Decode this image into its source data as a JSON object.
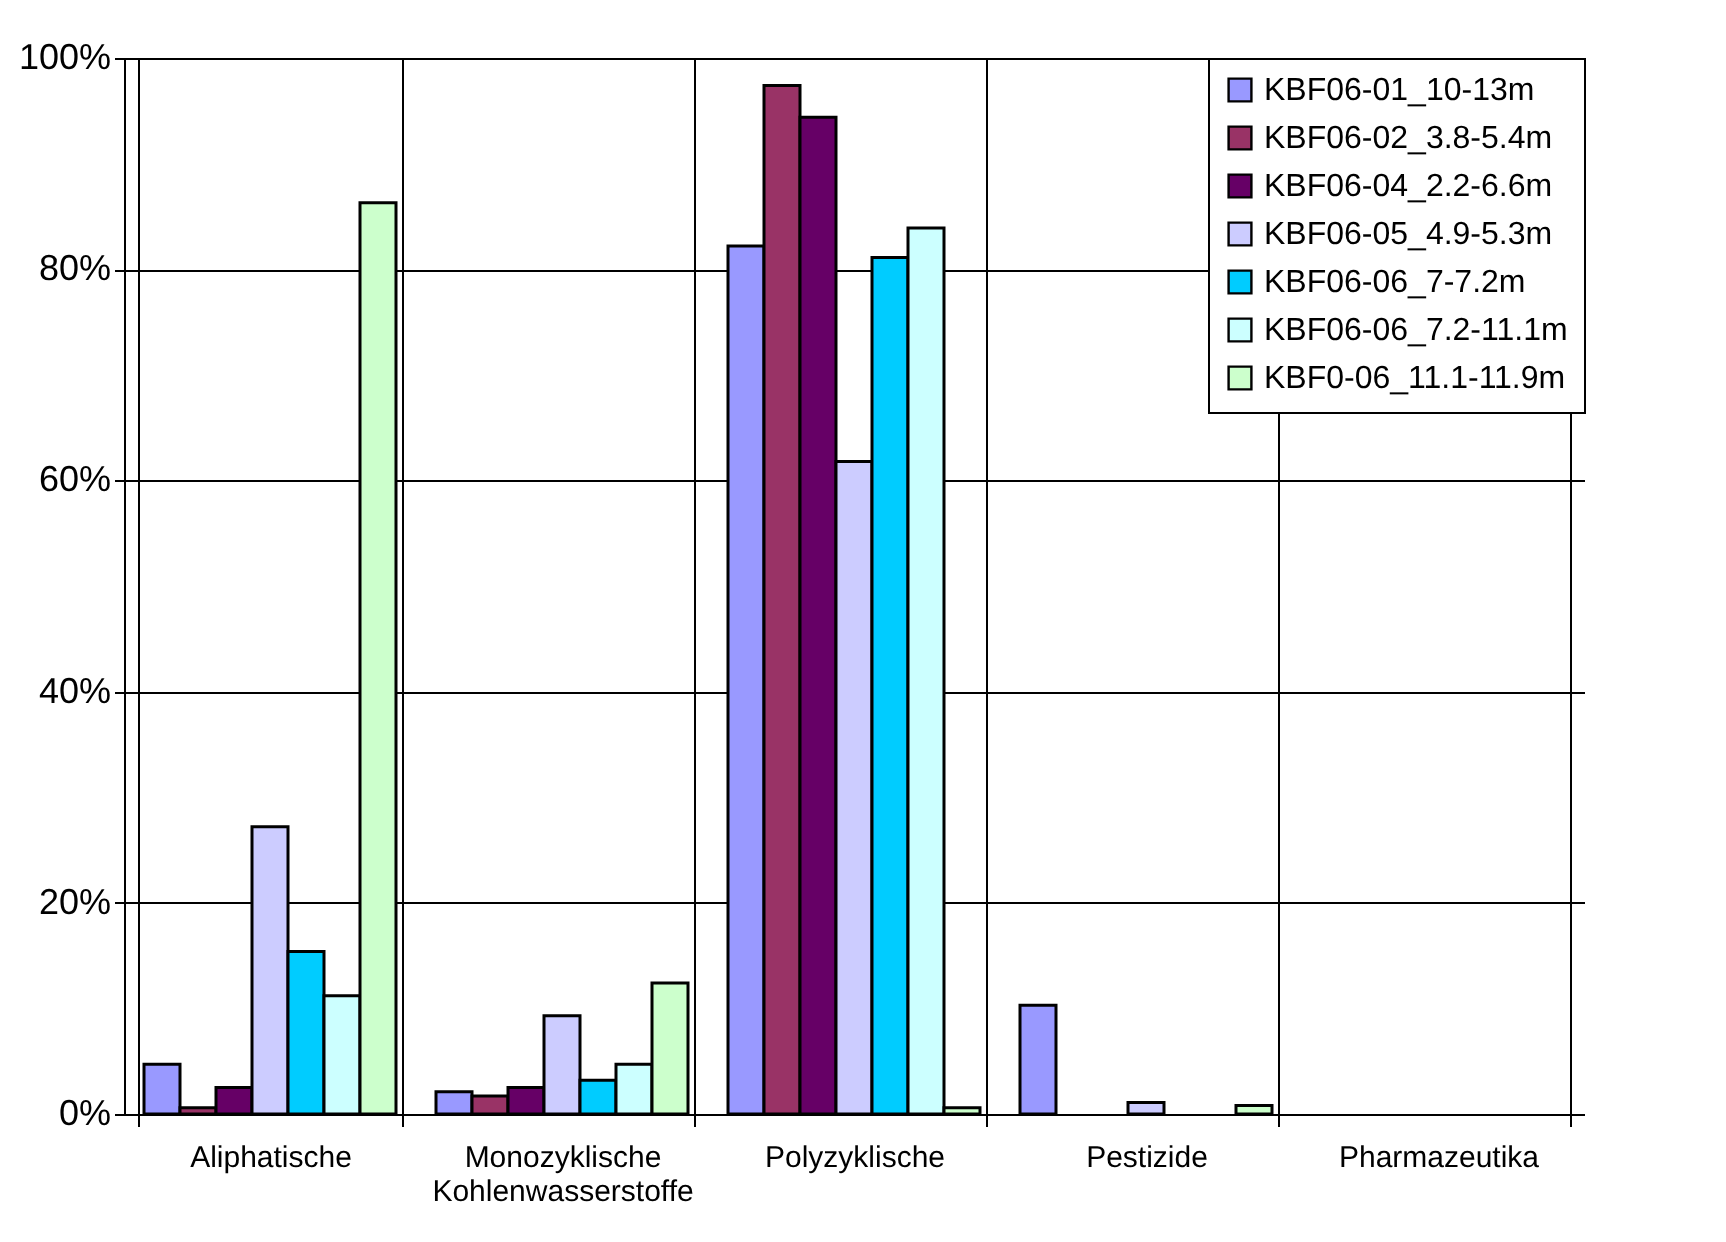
{
  "chart_data": {
    "type": "bar",
    "categories": [
      "Aliphatische",
      "Monozyklische\nKohlenwasserstoffe",
      "Polyzyklische",
      "Pestizide",
      "Pharmazeutika"
    ],
    "series": [
      {
        "name": "KBF06-01_10-13m",
        "color": "#9999ff",
        "values": [
          4.7,
          2.1,
          82.2,
          10.3,
          null
        ]
      },
      {
        "name": "KBF06-02_3.8-5.4m",
        "color": "#993366",
        "values": [
          0.6,
          1.7,
          97.4,
          null,
          null
        ]
      },
      {
        "name": "KBF06-04_2.2-6.6m",
        "color": "#660066",
        "values": [
          2.5,
          2.5,
          94.4,
          null,
          null
        ]
      },
      {
        "name": "KBF06-05_4.9-5.3m",
        "color": "#ccccff",
        "values": [
          27.2,
          9.3,
          61.8,
          1.1,
          null
        ]
      },
      {
        "name": "KBF06-06_7-7.2m",
        "color": "#00ccff",
        "values": [
          15.4,
          3.2,
          81.1,
          null,
          null
        ]
      },
      {
        "name": "KBF06-06_7.2-11.1m",
        "color": "#ccffff",
        "values": [
          11.2,
          4.7,
          83.9,
          null,
          null
        ]
      },
      {
        "name": "KBF0-06_11.1-11.9m",
        "color": "#ccffcc",
        "values": [
          86.3,
          12.4,
          0.6,
          0.8,
          null
        ]
      }
    ],
    "ylim": [
      0,
      100
    ],
    "yticks": [
      {
        "value": 0,
        "label": "0%"
      },
      {
        "value": 20,
        "label": "20%"
      },
      {
        "value": 40,
        "label": "40%"
      },
      {
        "value": 60,
        "label": "60%"
      },
      {
        "value": 80,
        "label": "80%"
      },
      {
        "value": 100,
        "label": "100%"
      }
    ],
    "grid": true,
    "legend": "top right"
  }
}
